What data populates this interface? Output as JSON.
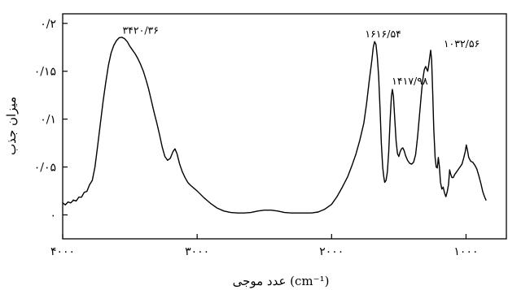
{
  "chart_data": {
    "type": "line",
    "xlabel": "عدد موجی (cm⁻¹)",
    "ylabel": "میزان جذب",
    "xlim": [
      4000,
      700
    ],
    "ylim": [
      -0.025,
      0.21
    ],
    "x_ticks": [
      {
        "value": 4000,
        "label": "۴۰۰۰"
      },
      {
        "value": 3000,
        "label": "۳۰۰۰"
      },
      {
        "value": 2000,
        "label": "۲۰۰۰"
      },
      {
        "value": 1000,
        "label": "۱۰۰۰"
      }
    ],
    "y_ticks": [
      {
        "value": 0,
        "label": "۰"
      },
      {
        "value": 0.05,
        "label": "۰/۰۵"
      },
      {
        "value": 0.1,
        "label": "۰/۱"
      },
      {
        "value": 0.15,
        "label": "۰/۱۵"
      },
      {
        "value": 0.2,
        "label": "۰/۲"
      }
    ],
    "annotations": [
      {
        "x": 3420.36,
        "y": 0.186,
        "label": "۳۴۲۰/۳۶"
      },
      {
        "x": 1616.54,
        "y": 0.182,
        "label": "۱۶۱۶/۵۴"
      },
      {
        "x": 1417.98,
        "y": 0.133,
        "label": "۱۴۱۷/۹۸"
      },
      {
        "x": 1032.56,
        "y": 0.172,
        "label": "۱۰۳۲/۵۶"
      }
    ],
    "series": [
      {
        "values": [
          [
            4000,
            0.011
          ],
          [
            3980,
            0.012
          ],
          [
            3960,
            0.012
          ],
          [
            3940,
            0.014
          ],
          [
            3920,
            0.014
          ],
          [
            3900,
            0.016
          ],
          [
            3880,
            0.017
          ],
          [
            3860,
            0.02
          ],
          [
            3840,
            0.022
          ],
          [
            3820,
            0.026
          ],
          [
            3800,
            0.03
          ],
          [
            3780,
            0.036
          ],
          [
            3760,
            0.05
          ],
          [
            3740,
            0.072
          ],
          [
            3720,
            0.095
          ],
          [
            3700,
            0.118
          ],
          [
            3680,
            0.138
          ],
          [
            3660,
            0.156
          ],
          [
            3640,
            0.169
          ],
          [
            3620,
            0.177
          ],
          [
            3600,
            0.182
          ],
          [
            3580,
            0.185
          ],
          [
            3560,
            0.1855
          ],
          [
            3540,
            0.184
          ],
          [
            3520,
            0.181
          ],
          [
            3500,
            0.176
          ],
          [
            3480,
            0.172
          ],
          [
            3460,
            0.168
          ],
          [
            3440,
            0.163
          ],
          [
            3420,
            0.157
          ],
          [
            3400,
            0.15
          ],
          [
            3380,
            0.141
          ],
          [
            3360,
            0.131
          ],
          [
            3340,
            0.119
          ],
          [
            3320,
            0.107
          ],
          [
            3300,
            0.096
          ],
          [
            3280,
            0.084
          ],
          [
            3260,
            0.071
          ],
          [
            3240,
            0.061
          ],
          [
            3220,
            0.057
          ],
          [
            3200,
            0.059
          ],
          [
            3180,
            0.066
          ],
          [
            3165,
            0.069
          ],
          [
            3150,
            0.064
          ],
          [
            3130,
            0.053
          ],
          [
            3110,
            0.045
          ],
          [
            3090,
            0.039
          ],
          [
            3070,
            0.034
          ],
          [
            3050,
            0.031
          ],
          [
            3000,
            0.025
          ],
          [
            2950,
            0.018
          ],
          [
            2900,
            0.012
          ],
          [
            2850,
            0.007
          ],
          [
            2800,
            0.004
          ],
          [
            2750,
            0.0025
          ],
          [
            2700,
            0.002
          ],
          [
            2650,
            0.002
          ],
          [
            2600,
            0.0025
          ],
          [
            2550,
            0.004
          ],
          [
            2500,
            0.005
          ],
          [
            2450,
            0.005
          ],
          [
            2400,
            0.004
          ],
          [
            2350,
            0.0025
          ],
          [
            2300,
            0.002
          ],
          [
            2250,
            0.002
          ],
          [
            2200,
            0.002
          ],
          [
            2150,
            0.002
          ],
          [
            2100,
            0.003
          ],
          [
            2050,
            0.006
          ],
          [
            2000,
            0.011
          ],
          [
            1960,
            0.019
          ],
          [
            1920,
            0.029
          ],
          [
            1880,
            0.04
          ],
          [
            1850,
            0.051
          ],
          [
            1820,
            0.063
          ],
          [
            1790,
            0.078
          ],
          [
            1760,
            0.096
          ],
          [
            1740,
            0.116
          ],
          [
            1720,
            0.14
          ],
          [
            1700,
            0.162
          ],
          [
            1690,
            0.175
          ],
          [
            1680,
            0.181
          ],
          [
            1670,
            0.178
          ],
          [
            1660,
            0.165
          ],
          [
            1650,
            0.145
          ],
          [
            1640,
            0.112
          ],
          [
            1630,
            0.075
          ],
          [
            1620,
            0.05
          ],
          [
            1612,
            0.04
          ],
          [
            1605,
            0.034
          ],
          [
            1595,
            0.036
          ],
          [
            1585,
            0.045
          ],
          [
            1575,
            0.066
          ],
          [
            1565,
            0.098
          ],
          [
            1555,
            0.124
          ],
          [
            1548,
            0.131
          ],
          [
            1540,
            0.124
          ],
          [
            1530,
            0.1
          ],
          [
            1520,
            0.077
          ],
          [
            1510,
            0.064
          ],
          [
            1500,
            0.061
          ],
          [
            1490,
            0.066
          ],
          [
            1480,
            0.069
          ],
          [
            1470,
            0.07
          ],
          [
            1460,
            0.067
          ],
          [
            1450,
            0.062
          ],
          [
            1435,
            0.057
          ],
          [
            1420,
            0.054
          ],
          [
            1405,
            0.053
          ],
          [
            1390,
            0.055
          ],
          [
            1375,
            0.063
          ],
          [
            1360,
            0.082
          ],
          [
            1345,
            0.106
          ],
          [
            1330,
            0.13
          ],
          [
            1320,
            0.143
          ],
          [
            1310,
            0.152
          ],
          [
            1300,
            0.155
          ],
          [
            1292,
            0.152
          ],
          [
            1285,
            0.15
          ],
          [
            1278,
            0.156
          ],
          [
            1270,
            0.165
          ],
          [
            1263,
            0.172
          ],
          [
            1256,
            0.162
          ],
          [
            1248,
            0.128
          ],
          [
            1240,
            0.09
          ],
          [
            1230,
            0.06
          ],
          [
            1222,
            0.05
          ],
          [
            1214,
            0.049
          ],
          [
            1206,
            0.06
          ],
          [
            1198,
            0.05
          ],
          [
            1190,
            0.034
          ],
          [
            1180,
            0.027
          ],
          [
            1170,
            0.029
          ],
          [
            1160,
            0.023
          ],
          [
            1150,
            0.019
          ],
          [
            1140,
            0.024
          ],
          [
            1130,
            0.032
          ],
          [
            1122,
            0.047
          ],
          [
            1115,
            0.043
          ],
          [
            1105,
            0.039
          ],
          [
            1095,
            0.039
          ],
          [
            1085,
            0.042
          ],
          [
            1075,
            0.044
          ],
          [
            1060,
            0.047
          ],
          [
            1045,
            0.05
          ],
          [
            1030,
            0.053
          ],
          [
            1018,
            0.059
          ],
          [
            1006,
            0.066
          ],
          [
            998,
            0.073
          ],
          [
            990,
            0.068
          ],
          [
            980,
            0.06
          ],
          [
            965,
            0.056
          ],
          [
            950,
            0.055
          ],
          [
            935,
            0.052
          ],
          [
            920,
            0.048
          ],
          [
            905,
            0.041
          ],
          [
            890,
            0.033
          ],
          [
            875,
            0.024
          ],
          [
            860,
            0.018
          ],
          [
            850,
            0.015
          ]
        ]
      }
    ]
  }
}
